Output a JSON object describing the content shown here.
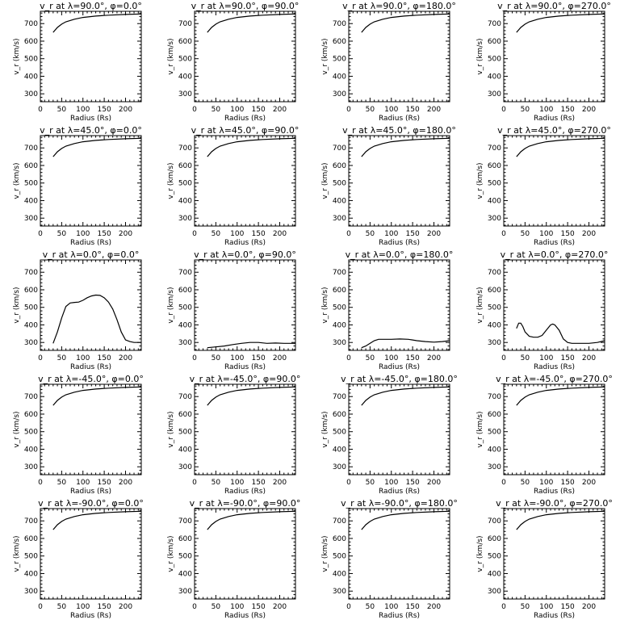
{
  "chart_data": [
    {
      "type": "line",
      "title": "v_r at λ=90.0°, φ=0.0°",
      "xlabel": "Radius (Rs)",
      "ylabel": "v_r (km/s)",
      "xlim": [
        0,
        237
      ],
      "ylim": [
        255,
        770
      ],
      "xticks": [
        0,
        50,
        100,
        150,
        200
      ],
      "yticks": [
        300,
        400,
        500,
        600,
        700
      ],
      "x": [
        30,
        40,
        50,
        60,
        80,
        100,
        130,
        160,
        200,
        237
      ],
      "values": [
        650,
        678,
        697,
        710,
        725,
        735,
        743,
        748,
        752,
        755
      ]
    },
    {
      "type": "line",
      "title": "v_r at λ=90.0°, φ=90.0°",
      "xlabel": "Radius (Rs)",
      "ylabel": "v_r (km/s)",
      "xlim": [
        0,
        237
      ],
      "ylim": [
        255,
        770
      ],
      "xticks": [
        0,
        50,
        100,
        150,
        200
      ],
      "yticks": [
        300,
        400,
        500,
        600,
        700
      ],
      "x": [
        30,
        40,
        50,
        60,
        80,
        100,
        130,
        160,
        200,
        237
      ],
      "values": [
        650,
        678,
        697,
        710,
        725,
        735,
        743,
        748,
        752,
        755
      ]
    },
    {
      "type": "line",
      "title": "v_r at λ=90.0°, φ=180.0°",
      "xlabel": "Radius (Rs)",
      "ylabel": "v_r (km/s)",
      "xlim": [
        0,
        237
      ],
      "ylim": [
        255,
        770
      ],
      "xticks": [
        0,
        50,
        100,
        150,
        200
      ],
      "yticks": [
        300,
        400,
        500,
        600,
        700
      ],
      "x": [
        30,
        40,
        50,
        60,
        80,
        100,
        130,
        160,
        200,
        237
      ],
      "values": [
        650,
        678,
        697,
        710,
        725,
        735,
        743,
        748,
        752,
        755
      ]
    },
    {
      "type": "line",
      "title": "v_r at λ=90.0°, φ=270.0°",
      "xlabel": "Radius (Rs)",
      "ylabel": "v_r (km/s)",
      "xlim": [
        0,
        237
      ],
      "ylim": [
        255,
        770
      ],
      "xticks": [
        0,
        50,
        100,
        150,
        200
      ],
      "yticks": [
        300,
        400,
        500,
        600,
        700
      ],
      "x": [
        30,
        40,
        50,
        60,
        80,
        100,
        130,
        160,
        200,
        237
      ],
      "values": [
        650,
        678,
        697,
        710,
        725,
        735,
        743,
        748,
        752,
        755
      ]
    },
    {
      "type": "line",
      "title": "v_r at λ=45.0°, φ=0.0°",
      "xlabel": "Radius (Rs)",
      "ylabel": "v_r (km/s)",
      "xlim": [
        0,
        237
      ],
      "ylim": [
        255,
        770
      ],
      "xticks": [
        0,
        50,
        100,
        150,
        200
      ],
      "yticks": [
        300,
        400,
        500,
        600,
        700
      ],
      "x": [
        30,
        40,
        50,
        60,
        80,
        100,
        130,
        160,
        200,
        237
      ],
      "values": [
        650,
        678,
        697,
        710,
        725,
        735,
        743,
        748,
        752,
        755
      ]
    },
    {
      "type": "line",
      "title": "v_r at λ=45.0°, φ=90.0°",
      "xlabel": "Radius (Rs)",
      "ylabel": "v_r (km/s)",
      "xlim": [
        0,
        237
      ],
      "ylim": [
        255,
        770
      ],
      "xticks": [
        0,
        50,
        100,
        150,
        200
      ],
      "yticks": [
        300,
        400,
        500,
        600,
        700
      ],
      "x": [
        30,
        40,
        50,
        60,
        80,
        100,
        130,
        160,
        200,
        237
      ],
      "values": [
        650,
        678,
        697,
        710,
        725,
        735,
        743,
        748,
        752,
        755
      ]
    },
    {
      "type": "line",
      "title": "v_r at λ=45.0°, φ=180.0°",
      "xlabel": "Radius (Rs)",
      "ylabel": "v_r (km/s)",
      "xlim": [
        0,
        237
      ],
      "ylim": [
        255,
        770
      ],
      "xticks": [
        0,
        50,
        100,
        150,
        200
      ],
      "yticks": [
        300,
        400,
        500,
        600,
        700
      ],
      "x": [
        30,
        40,
        50,
        60,
        80,
        100,
        130,
        160,
        200,
        237
      ],
      "values": [
        650,
        678,
        697,
        710,
        725,
        735,
        743,
        748,
        752,
        755
      ]
    },
    {
      "type": "line",
      "title": "v_r at λ=45.0°, φ=270.0°",
      "xlabel": "Radius (Rs)",
      "ylabel": "v_r (km/s)",
      "xlim": [
        0,
        237
      ],
      "ylim": [
        255,
        770
      ],
      "xticks": [
        0,
        50,
        100,
        150,
        200
      ],
      "yticks": [
        300,
        400,
        500,
        600,
        700
      ],
      "x": [
        30,
        40,
        50,
        60,
        80,
        100,
        130,
        160,
        200,
        237
      ],
      "values": [
        650,
        678,
        697,
        710,
        725,
        735,
        743,
        748,
        752,
        755
      ]
    },
    {
      "type": "line",
      "title": "v_r at λ=0.0°, φ=0.0°",
      "xlabel": "Radius (Rs)",
      "ylabel": "v_r (km/s)",
      "xlim": [
        0,
        237
      ],
      "ylim": [
        255,
        770
      ],
      "xticks": [
        0,
        50,
        100,
        150,
        200
      ],
      "yticks": [
        300,
        400,
        500,
        600,
        700
      ],
      "x": [
        30,
        40,
        50,
        60,
        70,
        80,
        90,
        100,
        110,
        120,
        130,
        140,
        150,
        160,
        170,
        180,
        190,
        200,
        210,
        220,
        237
      ],
      "values": [
        295,
        360,
        440,
        505,
        525,
        528,
        530,
        540,
        555,
        565,
        570,
        568,
        555,
        530,
        490,
        430,
        360,
        315,
        305,
        300,
        300
      ]
    },
    {
      "type": "line",
      "title": "v_r at λ=0.0°, φ=90.0°",
      "xlabel": "Radius (Rs)",
      "ylabel": "v_r (km/s)",
      "xlim": [
        0,
        237
      ],
      "ylim": [
        255,
        770
      ],
      "xticks": [
        0,
        50,
        100,
        150,
        200
      ],
      "yticks": [
        300,
        400,
        500,
        600,
        700
      ],
      "x": [
        30,
        50,
        70,
        90,
        110,
        130,
        150,
        170,
        190,
        210,
        237
      ],
      "values": [
        270,
        275,
        280,
        288,
        295,
        300,
        300,
        295,
        297,
        295,
        295
      ]
    },
    {
      "type": "line",
      "title": "v_r at λ=0.0°, φ=180.0°",
      "xlabel": "Radius (Rs)",
      "ylabel": "v_r (km/s)",
      "xlim": [
        0,
        237
      ],
      "ylim": [
        255,
        770
      ],
      "xticks": [
        0,
        50,
        100,
        150,
        200
      ],
      "yticks": [
        300,
        400,
        500,
        600,
        700
      ],
      "x": [
        30,
        40,
        50,
        60,
        70,
        80,
        100,
        120,
        140,
        160,
        180,
        200,
        220,
        237
      ],
      "values": [
        270,
        280,
        295,
        310,
        318,
        318,
        318,
        320,
        318,
        310,
        305,
        302,
        305,
        310
      ]
    },
    {
      "type": "line",
      "title": "v_r at λ=0.0°, φ=270.0°",
      "xlabel": "Radius (Rs)",
      "ylabel": "v_r (km/s)",
      "xlim": [
        0,
        237
      ],
      "ylim": [
        255,
        770
      ],
      "xticks": [
        0,
        50,
        100,
        150,
        200
      ],
      "yticks": [
        300,
        400,
        500,
        600,
        700
      ],
      "x": [
        30,
        35,
        40,
        45,
        50,
        60,
        70,
        80,
        90,
        100,
        110,
        115,
        120,
        130,
        140,
        150,
        160,
        180,
        200,
        220,
        237
      ],
      "values": [
        380,
        410,
        410,
        390,
        360,
        335,
        330,
        330,
        340,
        370,
        400,
        405,
        400,
        370,
        320,
        300,
        295,
        295,
        295,
        300,
        310
      ]
    },
    {
      "type": "line",
      "title": "v_r at λ=-45.0°, φ=0.0°",
      "xlabel": "Radius (Rs)",
      "ylabel": "v_r (km/s)",
      "xlim": [
        0,
        237
      ],
      "ylim": [
        255,
        770
      ],
      "xticks": [
        0,
        50,
        100,
        150,
        200
      ],
      "yticks": [
        300,
        400,
        500,
        600,
        700
      ],
      "x": [
        30,
        40,
        50,
        60,
        80,
        100,
        130,
        160,
        200,
        237
      ],
      "values": [
        650,
        678,
        697,
        710,
        725,
        735,
        743,
        748,
        752,
        755
      ]
    },
    {
      "type": "line",
      "title": "v_r at λ=-45.0°, φ=90.0°",
      "xlabel": "Radius (Rs)",
      "ylabel": "v_r (km/s)",
      "xlim": [
        0,
        237
      ],
      "ylim": [
        255,
        770
      ],
      "xticks": [
        0,
        50,
        100,
        150,
        200
      ],
      "yticks": [
        300,
        400,
        500,
        600,
        700
      ],
      "x": [
        30,
        40,
        50,
        60,
        80,
        100,
        130,
        160,
        200,
        237
      ],
      "values": [
        650,
        678,
        697,
        710,
        725,
        735,
        743,
        748,
        752,
        755
      ]
    },
    {
      "type": "line",
      "title": "v_r at λ=-45.0°, φ=180.0°",
      "xlabel": "Radius (Rs)",
      "ylabel": "v_r (km/s)",
      "xlim": [
        0,
        237
      ],
      "ylim": [
        255,
        770
      ],
      "xticks": [
        0,
        50,
        100,
        150,
        200
      ],
      "yticks": [
        300,
        400,
        500,
        600,
        700
      ],
      "x": [
        30,
        40,
        50,
        60,
        80,
        100,
        130,
        160,
        200,
        237
      ],
      "values": [
        650,
        678,
        697,
        710,
        725,
        735,
        743,
        748,
        752,
        755
      ]
    },
    {
      "type": "line",
      "title": "v_r at λ=-45.0°, φ=270.0°",
      "xlabel": "Radius (Rs)",
      "ylabel": "v_r (km/s)",
      "xlim": [
        0,
        237
      ],
      "ylim": [
        255,
        770
      ],
      "xticks": [
        0,
        50,
        100,
        150,
        200
      ],
      "yticks": [
        300,
        400,
        500,
        600,
        700
      ],
      "x": [
        30,
        40,
        50,
        60,
        80,
        100,
        130,
        160,
        200,
        237
      ],
      "values": [
        650,
        678,
        697,
        710,
        725,
        735,
        743,
        748,
        752,
        755
      ]
    },
    {
      "type": "line",
      "title": "v_r at λ=-90.0°, φ=0.0°",
      "xlabel": "Radius (Rs)",
      "ylabel": "v_r (km/s)",
      "xlim": [
        0,
        237
      ],
      "ylim": [
        255,
        770
      ],
      "xticks": [
        0,
        50,
        100,
        150,
        200
      ],
      "yticks": [
        300,
        400,
        500,
        600,
        700
      ],
      "x": [
        30,
        40,
        50,
        60,
        80,
        100,
        130,
        160,
        200,
        237
      ],
      "values": [
        650,
        678,
        697,
        710,
        725,
        735,
        743,
        748,
        752,
        755
      ]
    },
    {
      "type": "line",
      "title": "v_r at λ=-90.0°, φ=90.0°",
      "xlabel": "Radius (Rs)",
      "ylabel": "v_r (km/s)",
      "xlim": [
        0,
        237
      ],
      "ylim": [
        255,
        770
      ],
      "xticks": [
        0,
        50,
        100,
        150,
        200
      ],
      "yticks": [
        300,
        400,
        500,
        600,
        700
      ],
      "x": [
        30,
        40,
        50,
        60,
        80,
        100,
        130,
        160,
        200,
        237
      ],
      "values": [
        650,
        678,
        697,
        710,
        725,
        735,
        743,
        748,
        752,
        755
      ]
    },
    {
      "type": "line",
      "title": "v_r at λ=-90.0°, φ=180.0°",
      "xlabel": "Radius (Rs)",
      "ylabel": "v_r (km/s)",
      "xlim": [
        0,
        237
      ],
      "ylim": [
        255,
        770
      ],
      "xticks": [
        0,
        50,
        100,
        150,
        200
      ],
      "yticks": [
        300,
        400,
        500,
        600,
        700
      ],
      "x": [
        30,
        40,
        50,
        60,
        80,
        100,
        130,
        160,
        200,
        237
      ],
      "values": [
        650,
        678,
        697,
        710,
        725,
        735,
        743,
        748,
        752,
        755
      ]
    },
    {
      "type": "line",
      "title": "v_r at λ=-90.0°, φ=270.0°",
      "xlabel": "Radius (Rs)",
      "ylabel": "v_r (km/s)",
      "xlim": [
        0,
        237
      ],
      "ylim": [
        255,
        770
      ],
      "xticks": [
        0,
        50,
        100,
        150,
        200
      ],
      "yticks": [
        300,
        400,
        500,
        600,
        700
      ],
      "x": [
        30,
        40,
        50,
        60,
        80,
        100,
        130,
        160,
        200,
        237
      ],
      "values": [
        650,
        678,
        697,
        710,
        725,
        735,
        743,
        748,
        752,
        755
      ]
    }
  ]
}
